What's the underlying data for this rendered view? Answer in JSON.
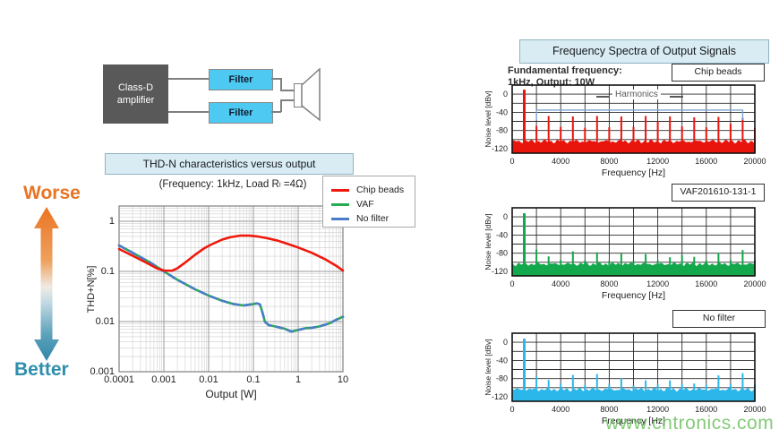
{
  "page": {
    "watermark_text": "www.cntronics.com",
    "watermark_color": "#64bf55"
  },
  "block_diagram": {
    "amplifier_line1": "Class-D",
    "amplifier_line2": "amplifier",
    "filter_top_label": "Filter",
    "filter_bottom_label": "Filter",
    "amplifier_fill": "#595959",
    "filter_fill": "#4ec9f2"
  },
  "thd_section": {
    "header": "THD-N characteristics versus output",
    "worse_label": "Worse",
    "better_label": "Better",
    "worse_color": "#e87425",
    "better_color": "#2e8fad"
  },
  "spectra_section": {
    "header": "Frequency Spectra of Output Signals",
    "fundamental_line1": "Fundamental frequency:",
    "fundamental_line2": "1kHz, Output: 10W"
  },
  "chart_data": [
    {
      "id": "thd_vs_output",
      "type": "line",
      "subtitle": "(Frequency: 1kHz, Load Rₗ =4Ω)",
      "xlabel": "Output [W]",
      "ylabel": "THD+N[%]",
      "xscale": "log",
      "yscale": "log",
      "xlim": [
        0.0001,
        10
      ],
      "ylim": [
        0.001,
        1
      ],
      "xtick_labels": [
        "0.0001",
        "0.001",
        "0.01",
        "0.1",
        "1",
        "10"
      ],
      "ytick_labels": [
        "1",
        "0.1",
        "0.01",
        "0.001"
      ],
      "grid": true,
      "legend_position": "top-right",
      "series": [
        {
          "name": "Chip beads",
          "color": "#f0180c",
          "style": "solid",
          "x": [
            0.0001,
            0.0002,
            0.0004,
            0.0007,
            0.001,
            0.0015,
            0.002,
            0.003,
            0.005,
            0.008,
            0.012,
            0.02,
            0.03,
            0.05,
            0.08,
            0.12,
            0.2,
            0.35,
            0.6,
            1,
            2,
            4,
            7,
            10
          ],
          "y": [
            0.28,
            0.205,
            0.15,
            0.115,
            0.104,
            0.103,
            0.115,
            0.15,
            0.215,
            0.29,
            0.35,
            0.43,
            0.48,
            0.515,
            0.515,
            0.5,
            0.46,
            0.41,
            0.35,
            0.3,
            0.235,
            0.175,
            0.13,
            0.104
          ]
        },
        {
          "name": "VAF",
          "color": "#27ab50",
          "style": "solid",
          "x": [
            0.0001,
            0.0002,
            0.0005,
            0.001,
            0.002,
            0.005,
            0.01,
            0.02,
            0.035,
            0.06,
            0.09,
            0.12,
            0.14,
            0.16,
            0.18,
            0.22,
            0.3,
            0.5,
            0.7,
            1,
            1.5,
            2,
            3,
            5,
            7,
            10
          ],
          "y": [
            0.33,
            0.235,
            0.15,
            0.1,
            0.068,
            0.044,
            0.033,
            0.026,
            0.0225,
            0.021,
            0.022,
            0.023,
            0.022,
            0.015,
            0.01,
            0.0085,
            0.008,
            0.0072,
            0.0063,
            0.0068,
            0.0074,
            0.0075,
            0.008,
            0.0092,
            0.0108,
            0.0125
          ]
        },
        {
          "name": "No filter",
          "color": "#4a7cc7",
          "style": "dashed",
          "x": [
            0.0001,
            0.0002,
            0.0005,
            0.001,
            0.002,
            0.005,
            0.01,
            0.02,
            0.035,
            0.06,
            0.09,
            0.12,
            0.14,
            0.16,
            0.18,
            0.22,
            0.3,
            0.5,
            0.7,
            1,
            1.5,
            2,
            3,
            5,
            7,
            10
          ],
          "y": [
            0.33,
            0.235,
            0.15,
            0.1,
            0.068,
            0.044,
            0.033,
            0.026,
            0.0225,
            0.021,
            0.022,
            0.023,
            0.022,
            0.015,
            0.01,
            0.0085,
            0.008,
            0.0072,
            0.0063,
            0.0068,
            0.0074,
            0.0075,
            0.008,
            0.0092,
            0.0108,
            0.0125
          ]
        }
      ]
    },
    {
      "id": "spectrum_chip_beads",
      "type": "bar",
      "panel_label": "Chip beads",
      "color": "#e8150d",
      "xlabel": "Frequency [Hz]",
      "ylabel": "Noise level [dBv]",
      "xlim": [
        0,
        20000
      ],
      "ylim_dbv": [
        -130,
        20
      ],
      "xtick_labels": [
        "0",
        "4000",
        "8000",
        "12000",
        "16000",
        "20000"
      ],
      "ytick_values": [
        0,
        -40,
        -80,
        -120
      ],
      "grid_step_hz": 2000,
      "grid_step_dbv": 20,
      "noise_floor_dbv": -104,
      "harmonics_hz": [
        1000,
        2000,
        3000,
        4000,
        5000,
        6000,
        7000,
        8000,
        9000,
        10000,
        11000,
        12000,
        13000,
        14000,
        15000,
        16000,
        17000,
        18000,
        19000,
        20000
      ],
      "levels_dbv": [
        10,
        -70,
        -48,
        -72,
        -49,
        -74,
        -48,
        -73,
        -49,
        -72,
        -48,
        -60,
        -49,
        -71,
        -51,
        -73,
        -50,
        -65,
        -52,
        -75
      ],
      "annotation": {
        "label": "Harmonics",
        "bracket_from_hz": 2000,
        "bracket_to_hz": 19000,
        "bracket_level_dbv": -35,
        "bracket_color": "#7aa3d4"
      }
    },
    {
      "id": "spectrum_vaf",
      "type": "bar",
      "panel_label": "VAF201610-131-1",
      "color": "#12a84b",
      "xlabel": "Frequency [Hz]",
      "ylabel": "Noise level [dBv]",
      "xlim": [
        0,
        20000
      ],
      "ylim_dbv": [
        -130,
        20
      ],
      "xtick_labels": [
        "0",
        "4000",
        "8000",
        "12000",
        "16000",
        "20000"
      ],
      "ytick_values": [
        0,
        -40,
        -80,
        -120
      ],
      "grid_step_hz": 2000,
      "grid_step_dbv": 20,
      "noise_floor_dbv": -104,
      "harmonics_hz": [
        1000,
        2000,
        3000,
        4000,
        5000,
        6000,
        7000,
        8000,
        9000,
        10000,
        11000,
        12000,
        13000,
        14000,
        15000,
        16000,
        17000,
        18000,
        19000,
        20000
      ],
      "levels_dbv": [
        8,
        -72,
        -87,
        -95,
        -76,
        -96,
        -78,
        -97,
        -81,
        -97,
        -82,
        -96,
        -89,
        -84,
        -88,
        -96,
        -79,
        -95,
        -73,
        -95
      ]
    },
    {
      "id": "spectrum_no_filter",
      "type": "bar",
      "panel_label": "No filter",
      "color": "#2cb7ea",
      "xlabel": "Frequency [Hz]",
      "ylabel": "Noise level [dBv]",
      "xlim": [
        0,
        20000
      ],
      "ylim_dbv": [
        -130,
        20
      ],
      "xtick_labels": [
        "0",
        "4000",
        "8000",
        "12000",
        "16000",
        "20000"
      ],
      "ytick_values": [
        0,
        -40,
        -80,
        -120
      ],
      "grid_step_hz": 2000,
      "grid_step_dbv": 20,
      "noise_floor_dbv": -104,
      "harmonics_hz": [
        1000,
        2000,
        3000,
        4000,
        5000,
        6000,
        7000,
        8000,
        9000,
        10000,
        11000,
        12000,
        13000,
        14000,
        15000,
        16000,
        17000,
        18000,
        19000,
        20000
      ],
      "levels_dbv": [
        8,
        -76,
        -83,
        -91,
        -72,
        -94,
        -70,
        -93,
        -79,
        -95,
        -84,
        -93,
        -84,
        -92,
        -91,
        -94,
        -73,
        -92,
        -68,
        -93
      ]
    }
  ]
}
